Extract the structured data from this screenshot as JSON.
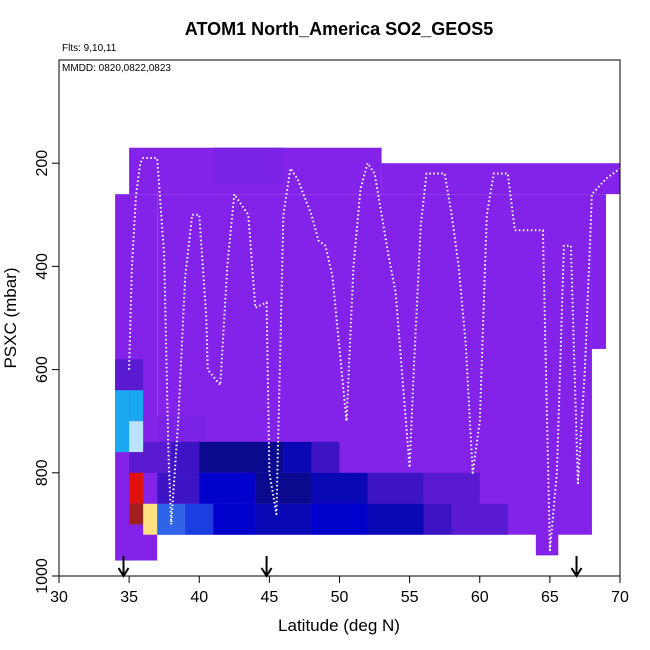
{
  "chart_data": {
    "type": "heatmap",
    "title": "ATOM1 North_America SO2_GEOS5",
    "annotations": [
      "Flts: 9,10,11",
      "MMDD: 0820,0822,0823"
    ],
    "xlabel": "Latitude (deg N)",
    "ylabel": "PSXC (mbar)",
    "xlim": [
      30,
      70
    ],
    "ylim": [
      1000,
      0
    ],
    "x_ticks": [
      30,
      35,
      40,
      45,
      50,
      55,
      60,
      65,
      70
    ],
    "y_ticks": [
      200,
      400,
      600,
      800,
      1000
    ],
    "grid": false,
    "colors": {
      "background_field": "#8323ea",
      "purple_dark": "#7a22e6",
      "indigo": "#5a1ad0",
      "blue_violet": "#3d14c4",
      "navy": "#0a0a8e",
      "dark_blue": "#0808b4",
      "blue": "#0000cc",
      "medium_blue": "#1a3ee0",
      "royal_blue": "#2f63e8",
      "sky_blue": "#1aa8ee",
      "light_blue": "#b8e4f8",
      "red": "#e01010",
      "dark_red": "#a02020",
      "yellow": "#ffe080",
      "track": "#ffffff"
    },
    "cells": [
      {
        "lat": [
          34.0,
          37.0
        ],
        "p": [
          260,
          970
        ],
        "color": "background_field"
      },
      {
        "lat": [
          35.0,
          53.0
        ],
        "p": [
          170,
          260
        ],
        "color": "background_field"
      },
      {
        "lat": [
          53.0,
          70.0
        ],
        "p": [
          200,
          260
        ],
        "color": "background_field"
      },
      {
        "lat": [
          37.0,
          68.0
        ],
        "p": [
          260,
          920
        ],
        "color": "background_field"
      },
      {
        "lat": [
          68.0,
          69.0
        ],
        "p": [
          260,
          560
        ],
        "color": "background_field"
      },
      {
        "lat": [
          64.0,
          65.6
        ],
        "p": [
          850,
          960
        ],
        "color": "background_field"
      },
      {
        "lat": [
          66.0,
          67.0
        ],
        "p": [
          830,
          900
        ],
        "color": "background_field"
      },
      {
        "lat": [
          41.0,
          46.0
        ],
        "p": [
          170,
          240
        ],
        "color": "purple_dark"
      },
      {
        "lat": [
          37.0,
          40.5
        ],
        "p": [
          690,
          740
        ],
        "color": "purple_dark"
      },
      {
        "lat": [
          34.0,
          36.0
        ],
        "p": [
          580,
          640
        ],
        "color": "indigo"
      },
      {
        "lat": [
          36.0,
          38.0
        ],
        "p": [
          740,
          800
        ],
        "color": "indigo"
      },
      {
        "lat": [
          38.0,
          40.0
        ],
        "p": [
          740,
          800
        ],
        "color": "blue_violet"
      },
      {
        "lat": [
          40.0,
          46.0
        ],
        "p": [
          740,
          800
        ],
        "color": "navy"
      },
      {
        "lat": [
          46.0,
          48.0
        ],
        "p": [
          740,
          800
        ],
        "color": "dark_blue"
      },
      {
        "lat": [
          48.0,
          50.0
        ],
        "p": [
          740,
          800
        ],
        "color": "blue_violet"
      },
      {
        "lat": [
          37.0,
          40.0
        ],
        "p": [
          800,
          860
        ],
        "color": "blue_violet"
      },
      {
        "lat": [
          40.0,
          44.0
        ],
        "p": [
          800,
          860
        ],
        "color": "blue"
      },
      {
        "lat": [
          44.0,
          48.0
        ],
        "p": [
          800,
          860
        ],
        "color": "navy"
      },
      {
        "lat": [
          48.0,
          52.0
        ],
        "p": [
          800,
          860
        ],
        "color": "dark_blue"
      },
      {
        "lat": [
          52.0,
          56.0
        ],
        "p": [
          800,
          860
        ],
        "color": "blue_violet"
      },
      {
        "lat": [
          56.0,
          60.0
        ],
        "p": [
          800,
          860
        ],
        "color": "indigo"
      },
      {
        "lat": [
          37.0,
          39.0
        ],
        "p": [
          860,
          920
        ],
        "color": "royal_blue"
      },
      {
        "lat": [
          39.0,
          41.0
        ],
        "p": [
          860,
          920
        ],
        "color": "medium_blue"
      },
      {
        "lat": [
          41.0,
          44.0
        ],
        "p": [
          860,
          920
        ],
        "color": "blue"
      },
      {
        "lat": [
          44.0,
          48.0
        ],
        "p": [
          860,
          920
        ],
        "color": "dark_blue"
      },
      {
        "lat": [
          48.0,
          52.0
        ],
        "p": [
          860,
          920
        ],
        "color": "blue"
      },
      {
        "lat": [
          52.0,
          56.0
        ],
        "p": [
          860,
          920
        ],
        "color": "dark_blue"
      },
      {
        "lat": [
          56.0,
          58.0
        ],
        "p": [
          860,
          920
        ],
        "color": "blue_violet"
      },
      {
        "lat": [
          58.0,
          62.0
        ],
        "p": [
          860,
          920
        ],
        "color": "indigo"
      },
      {
        "lat": [
          34.0,
          35.0
        ],
        "p": [
          640,
          760
        ],
        "color": "sky_blue"
      },
      {
        "lat": [
          35.0,
          36.0
        ],
        "p": [
          640,
          700
        ],
        "color": "sky_blue"
      },
      {
        "lat": [
          35.0,
          36.0
        ],
        "p": [
          700,
          760
        ],
        "color": "light_blue"
      },
      {
        "lat": [
          35.0,
          36.0
        ],
        "p": [
          760,
          800
        ],
        "color": "indigo"
      },
      {
        "lat": [
          35.0,
          36.0
        ],
        "p": [
          800,
          860
        ],
        "color": "red"
      },
      {
        "lat": [
          35.0,
          36.0
        ],
        "p": [
          860,
          900
        ],
        "color": "dark_red"
      },
      {
        "lat": [
          36.0,
          37.0
        ],
        "p": [
          860,
          920
        ],
        "color": "yellow"
      }
    ],
    "flight_track": [
      [
        35.0,
        600
      ],
      [
        35.2,
        400
      ],
      [
        35.5,
        260
      ],
      [
        35.8,
        200
      ],
      [
        36.0,
        190
      ],
      [
        37.0,
        190
      ],
      [
        37.5,
        380
      ],
      [
        37.8,
        760
      ],
      [
        38.0,
        900
      ],
      [
        38.5,
        700
      ],
      [
        39.0,
        420
      ],
      [
        39.5,
        300
      ],
      [
        40.0,
        300
      ],
      [
        40.5,
        500
      ],
      [
        40.6,
        600
      ],
      [
        41.5,
        630
      ],
      [
        42.0,
        400
      ],
      [
        42.5,
        260
      ],
      [
        43.5,
        300
      ],
      [
        44.0,
        480
      ],
      [
        44.8,
        470
      ],
      [
        45.0,
        800
      ],
      [
        45.5,
        880
      ],
      [
        45.7,
        650
      ],
      [
        46.0,
        300
      ],
      [
        46.5,
        210
      ],
      [
        47.0,
        230
      ],
      [
        48.0,
        300
      ],
      [
        48.5,
        350
      ],
      [
        49.0,
        360
      ],
      [
        49.5,
        420
      ],
      [
        50.0,
        560
      ],
      [
        50.5,
        700
      ],
      [
        51.0,
        400
      ],
      [
        51.5,
        250
      ],
      [
        52.0,
        200
      ],
      [
        52.5,
        220
      ],
      [
        53.0,
        300
      ],
      [
        53.5,
        380
      ],
      [
        54.0,
        450
      ],
      [
        55.0,
        790
      ],
      [
        55.3,
        600
      ],
      [
        55.8,
        320
      ],
      [
        56.2,
        220
      ],
      [
        57.5,
        220
      ],
      [
        58.0,
        300
      ],
      [
        58.5,
        400
      ],
      [
        59.0,
        550
      ],
      [
        59.5,
        800
      ],
      [
        60.0,
        700
      ],
      [
        60.5,
        300
      ],
      [
        61.0,
        220
      ],
      [
        62.0,
        220
      ],
      [
        62.5,
        330
      ],
      [
        64.5,
        330
      ],
      [
        65.0,
        950
      ],
      [
        65.5,
        800
      ],
      [
        66.0,
        360
      ],
      [
        66.5,
        360
      ],
      [
        67.0,
        820
      ],
      [
        67.5,
        600
      ],
      [
        68.0,
        260
      ],
      [
        69.0,
        230
      ],
      [
        70.0,
        210
      ]
    ],
    "arrows_lat": [
      34.6,
      44.8,
      66.9
    ]
  }
}
